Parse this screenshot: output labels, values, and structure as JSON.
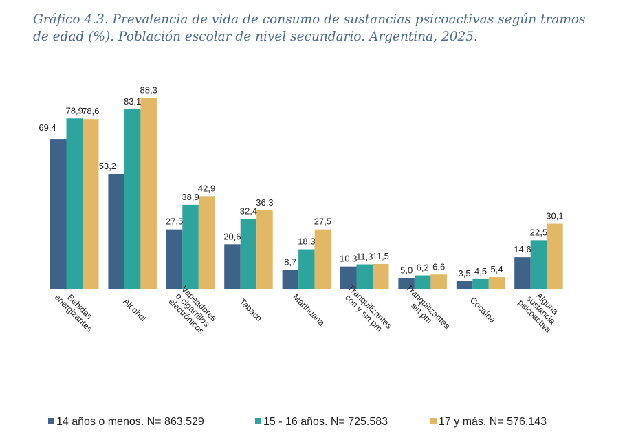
{
  "title": "Gráfico 4.3. Prevalencia de vida de consumo de sustancias psicoactivas según tramos de edad (%). Población escolar de nivel secundario. Argentina, 2025.",
  "chart_data": {
    "type": "bar",
    "title": "Gráfico 4.3. Prevalencia de vida de consumo de sustancias psicoactivas según tramos de edad (%). Población escolar de nivel secundario. Argentina, 2025.",
    "categories": [
      [
        "Bebidas",
        "energizantes"
      ],
      [
        "Alcohol"
      ],
      [
        "Vapeadores",
        "o cigarrillos",
        "electrónicos"
      ],
      [
        "Tabaco"
      ],
      [
        "Marihuana"
      ],
      [
        "Tranquilizantes",
        "con y sin pm"
      ],
      [
        "Tranquilizantes",
        "sin pm"
      ],
      [
        "Cocaína"
      ],
      [
        "Alguna",
        "sustancia",
        "psicoactiva"
      ]
    ],
    "series": [
      {
        "name": "14 años o menos. N= 863.529",
        "color": "#3f6289",
        "values": [
          69.4,
          53.2,
          27.5,
          20.6,
          8.7,
          10.3,
          5.0,
          3.5,
          14.6
        ],
        "labels": [
          "69,4",
          "53,2",
          "27,5",
          "20,6",
          "8,7",
          "10,3",
          "5,0",
          "3,5",
          "14,6"
        ]
      },
      {
        "name": "15 - 16 años. N= 725.583",
        "color": "#2ea59c",
        "values": [
          78.9,
          83.1,
          38.9,
          32.4,
          18.3,
          11.3,
          6.2,
          4.5,
          22.5
        ],
        "labels": [
          "78,9",
          "83,1",
          "38,9",
          "32,4",
          "18,3",
          "11,3",
          "6,2",
          "4,5",
          "22,5"
        ]
      },
      {
        "name": "17 y más. N= 576.143",
        "color": "#e2b866",
        "values": [
          78.6,
          88.3,
          42.9,
          36.3,
          27.5,
          11.5,
          6.6,
          5.4,
          30.1
        ],
        "labels": [
          "78,6",
          "88,3",
          "42,9",
          "36,3",
          "27,5",
          "11,5",
          "6,6",
          "5,4",
          "30,1"
        ]
      }
    ],
    "ylim": [
      0,
      100
    ],
    "grid": false,
    "legend": "bottom"
  }
}
